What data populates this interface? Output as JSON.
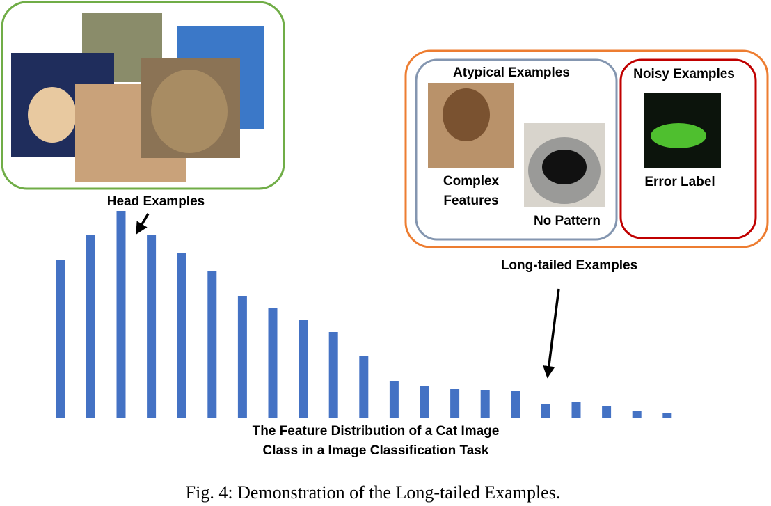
{
  "chart_data": {
    "type": "bar",
    "categories": [
      null,
      null,
      null,
      null,
      null,
      null,
      null,
      null,
      null,
      null,
      null,
      null,
      null,
      null,
      null,
      null,
      null,
      null,
      null,
      null,
      null
    ],
    "values": [
      227,
      262,
      297,
      262,
      236,
      210,
      175,
      158,
      140,
      123,
      88,
      53,
      45,
      41,
      39,
      38,
      19,
      22,
      17,
      10,
      6
    ],
    "color": "#4472c4",
    "ylim": [
      0,
      300
    ],
    "xlabel": [
      "The Feature Distribution of a Cat Image",
      "Class in a Image Classification Task"
    ],
    "annotations": [
      "Head Examples",
      "Long-tailed Examples"
    ]
  },
  "panels": {
    "atypical": {
      "title": "Atypical Examples",
      "labels": [
        [
          "Complex",
          "Features"
        ],
        "No Pattern"
      ]
    },
    "noisy": {
      "title": "Noisy Examples",
      "label": "Error Label"
    }
  },
  "caption": "Fig. 4: Demonstration of the Long-tailed Examples."
}
